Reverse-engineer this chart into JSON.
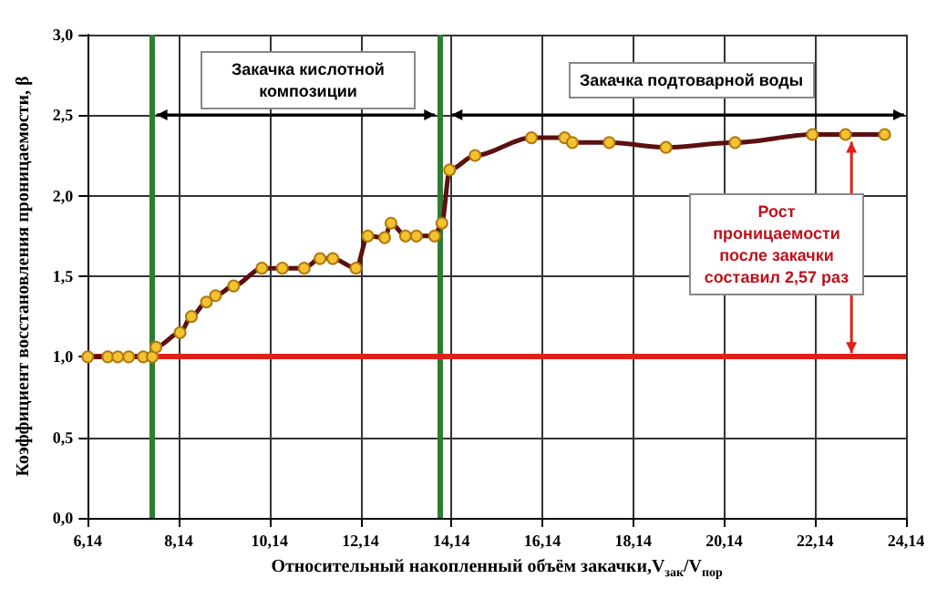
{
  "chart_data": {
    "type": "line",
    "xlabel": "Относительный накопленный объём закачки,V$_{зак}$/V$_{пор}$",
    "ylabel": "Коэффициент восстановления проницаемости, β",
    "annotations": [
      "Закачка кислотной композиции",
      "Закачка подтоварной воды",
      "Рост проницаемости после закачки составил 2,57 раз"
    ],
    "series": [
      {
        "color": "#5c1010",
        "x": [
          6.14,
          6.58,
          6.8,
          7.04,
          7.36,
          7.56,
          7.64,
          8.17,
          8.42,
          8.75,
          8.95,
          9.35,
          9.97,
          10.42,
          10.9,
          11.25,
          11.53,
          12.04,
          12.3,
          12.67,
          12.81,
          13.13,
          13.37,
          13.77,
          13.93,
          14.1,
          14.66,
          15.9,
          16.63,
          16.8,
          17.61,
          18.86,
          20.38,
          22.08,
          22.81,
          23.67
        ],
        "values": [
          1.0,
          1.0,
          1.0,
          1.0,
          1.0,
          1.0,
          1.06,
          1.15,
          1.25,
          1.34,
          1.38,
          1.44,
          1.55,
          1.55,
          1.55,
          1.61,
          1.61,
          1.55,
          1.75,
          1.74,
          1.83,
          1.75,
          1.75,
          1.75,
          1.83,
          2.16,
          2.25,
          2.36,
          2.36,
          2.33,
          2.33,
          2.3,
          2.33,
          2.38,
          2.38,
          2.38
        ]
      }
    ],
    "xlim": [
      6.14,
      24.14
    ],
    "xticks": [
      {
        "value": 6.14,
        "label": "6,14"
      },
      {
        "value": 8.14,
        "label": "8,14"
      },
      {
        "value": 10.14,
        "label": "10,14"
      },
      {
        "value": 12.14,
        "label": "12,14"
      },
      {
        "value": 14.14,
        "label": "14,14"
      },
      {
        "value": 16.14,
        "label": "16,14"
      },
      {
        "value": 18.14,
        "label": "18,14"
      },
      {
        "value": 20.14,
        "label": "20,14"
      },
      {
        "value": 22.14,
        "label": "22,14"
      },
      {
        "value": 24.14,
        "label": "24,14"
      }
    ],
    "ylim": [
      0,
      3
    ],
    "yticks": [
      {
        "value": 0,
        "label": "0,0"
      },
      {
        "value": 0.5,
        "label": "0,5"
      },
      {
        "value": 1,
        "label": "1,0"
      },
      {
        "value": 1.5,
        "label": "1,5"
      },
      {
        "value": 2,
        "label": "2,0"
      },
      {
        "value": 2.5,
        "label": "2,5"
      },
      {
        "value": 3,
        "label": "3,0"
      }
    ],
    "ref_lines": [
      {
        "axis": "x",
        "value": 7.53,
        "color": "#2e7d32"
      },
      {
        "axis": "x",
        "value": 13.9,
        "color": "#2e7d32"
      },
      {
        "axis": "y",
        "value": 1.0,
        "color": "#e0201b"
      }
    ],
    "grid": true,
    "marker": "circle",
    "line_style": "solid"
  }
}
